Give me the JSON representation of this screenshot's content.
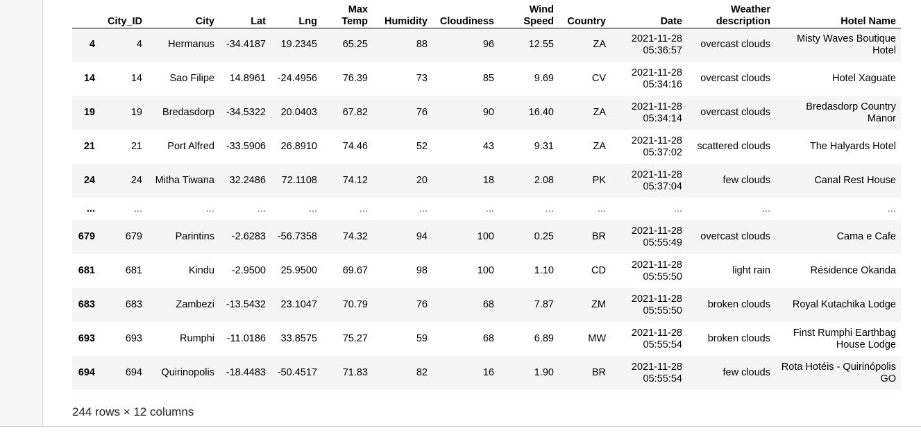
{
  "dataframe": {
    "columns": [
      "",
      "City_ID",
      "City",
      "Lat",
      "Lng",
      "Max Temp",
      "Humidity",
      "Cloudiness",
      "Wind Speed",
      "Country",
      "Date",
      "Weather description",
      "Hotel Name"
    ],
    "rows": [
      {
        "index": "4",
        "city_id": "4",
        "city": "Hermanus",
        "lat": "-34.4187",
        "lng": "19.2345",
        "max_temp": "65.25",
        "humidity": "88",
        "cloudiness": "96",
        "wind_speed": "12.55",
        "country": "ZA",
        "date": "2021-11-28 05:36:57",
        "weather": "overcast clouds",
        "hotel": "Misty Waves Boutique Hotel"
      },
      {
        "index": "14",
        "city_id": "14",
        "city": "Sao Filipe",
        "lat": "14.8961",
        "lng": "-24.4956",
        "max_temp": "76.39",
        "humidity": "73",
        "cloudiness": "85",
        "wind_speed": "9.69",
        "country": "CV",
        "date": "2021-11-28 05:34:16",
        "weather": "overcast clouds",
        "hotel": "Hotel Xaguate"
      },
      {
        "index": "19",
        "city_id": "19",
        "city": "Bredasdorp",
        "lat": "-34.5322",
        "lng": "20.0403",
        "max_temp": "67.82",
        "humidity": "76",
        "cloudiness": "90",
        "wind_speed": "16.40",
        "country": "ZA",
        "date": "2021-11-28 05:34:14",
        "weather": "overcast clouds",
        "hotel": "Bredasdorp Country Manor"
      },
      {
        "index": "21",
        "city_id": "21",
        "city": "Port Alfred",
        "lat": "-33.5906",
        "lng": "26.8910",
        "max_temp": "74.46",
        "humidity": "52",
        "cloudiness": "43",
        "wind_speed": "9.31",
        "country": "ZA",
        "date": "2021-11-28 05:37:02",
        "weather": "scattered clouds",
        "hotel": "The Halyards Hotel"
      },
      {
        "index": "24",
        "city_id": "24",
        "city": "Mitha Tiwana",
        "lat": "32.2486",
        "lng": "72.1108",
        "max_temp": "74.12",
        "humidity": "20",
        "cloudiness": "18",
        "wind_speed": "2.08",
        "country": "PK",
        "date": "2021-11-28 05:37:04",
        "weather": "few clouds",
        "hotel": "Canal Rest House"
      },
      {
        "index": "...",
        "city_id": "...",
        "city": "...",
        "lat": "...",
        "lng": "...",
        "max_temp": "...",
        "humidity": "...",
        "cloudiness": "...",
        "wind_speed": "...",
        "country": "...",
        "date": "...",
        "weather": "...",
        "hotel": "...",
        "ellipsis": true
      },
      {
        "index": "679",
        "city_id": "679",
        "city": "Parintins",
        "lat": "-2.6283",
        "lng": "-56.7358",
        "max_temp": "74.32",
        "humidity": "94",
        "cloudiness": "100",
        "wind_speed": "0.25",
        "country": "BR",
        "date": "2021-11-28 05:55:49",
        "weather": "overcast clouds",
        "hotel": "Cama e Cafe"
      },
      {
        "index": "681",
        "city_id": "681",
        "city": "Kindu",
        "lat": "-2.9500",
        "lng": "25.9500",
        "max_temp": "69.67",
        "humidity": "98",
        "cloudiness": "100",
        "wind_speed": "1.10",
        "country": "CD",
        "date": "2021-11-28 05:55:50",
        "weather": "light rain",
        "hotel": "Résidence Okanda"
      },
      {
        "index": "683",
        "city_id": "683",
        "city": "Zambezi",
        "lat": "-13.5432",
        "lng": "23.1047",
        "max_temp": "70.79",
        "humidity": "76",
        "cloudiness": "68",
        "wind_speed": "7.87",
        "country": "ZM",
        "date": "2021-11-28 05:55:50",
        "weather": "broken clouds",
        "hotel": "Royal Kutachika Lodge"
      },
      {
        "index": "693",
        "city_id": "693",
        "city": "Rumphi",
        "lat": "-11.0186",
        "lng": "33.8575",
        "max_temp": "75.27",
        "humidity": "59",
        "cloudiness": "68",
        "wind_speed": "6.89",
        "country": "MW",
        "date": "2021-11-28 05:55:54",
        "weather": "broken clouds",
        "hotel": "Finst Rumphi Earthbag House Lodge"
      },
      {
        "index": "694",
        "city_id": "694",
        "city": "Quirinopolis",
        "lat": "-18.4483",
        "lng": "-50.4517",
        "max_temp": "71.83",
        "humidity": "82",
        "cloudiness": "16",
        "wind_speed": "1.90",
        "country": "BR",
        "date": "2021-11-28 05:55:54",
        "weather": "few clouds",
        "hotel": "Rota Hotéis - Quirinópolis GO"
      }
    ],
    "shape_text": "244 rows × 12 columns"
  },
  "colors": {
    "odd_row": "#f5f5f5",
    "even_row": "#ffffff",
    "gutter": "#f7f7f7"
  }
}
